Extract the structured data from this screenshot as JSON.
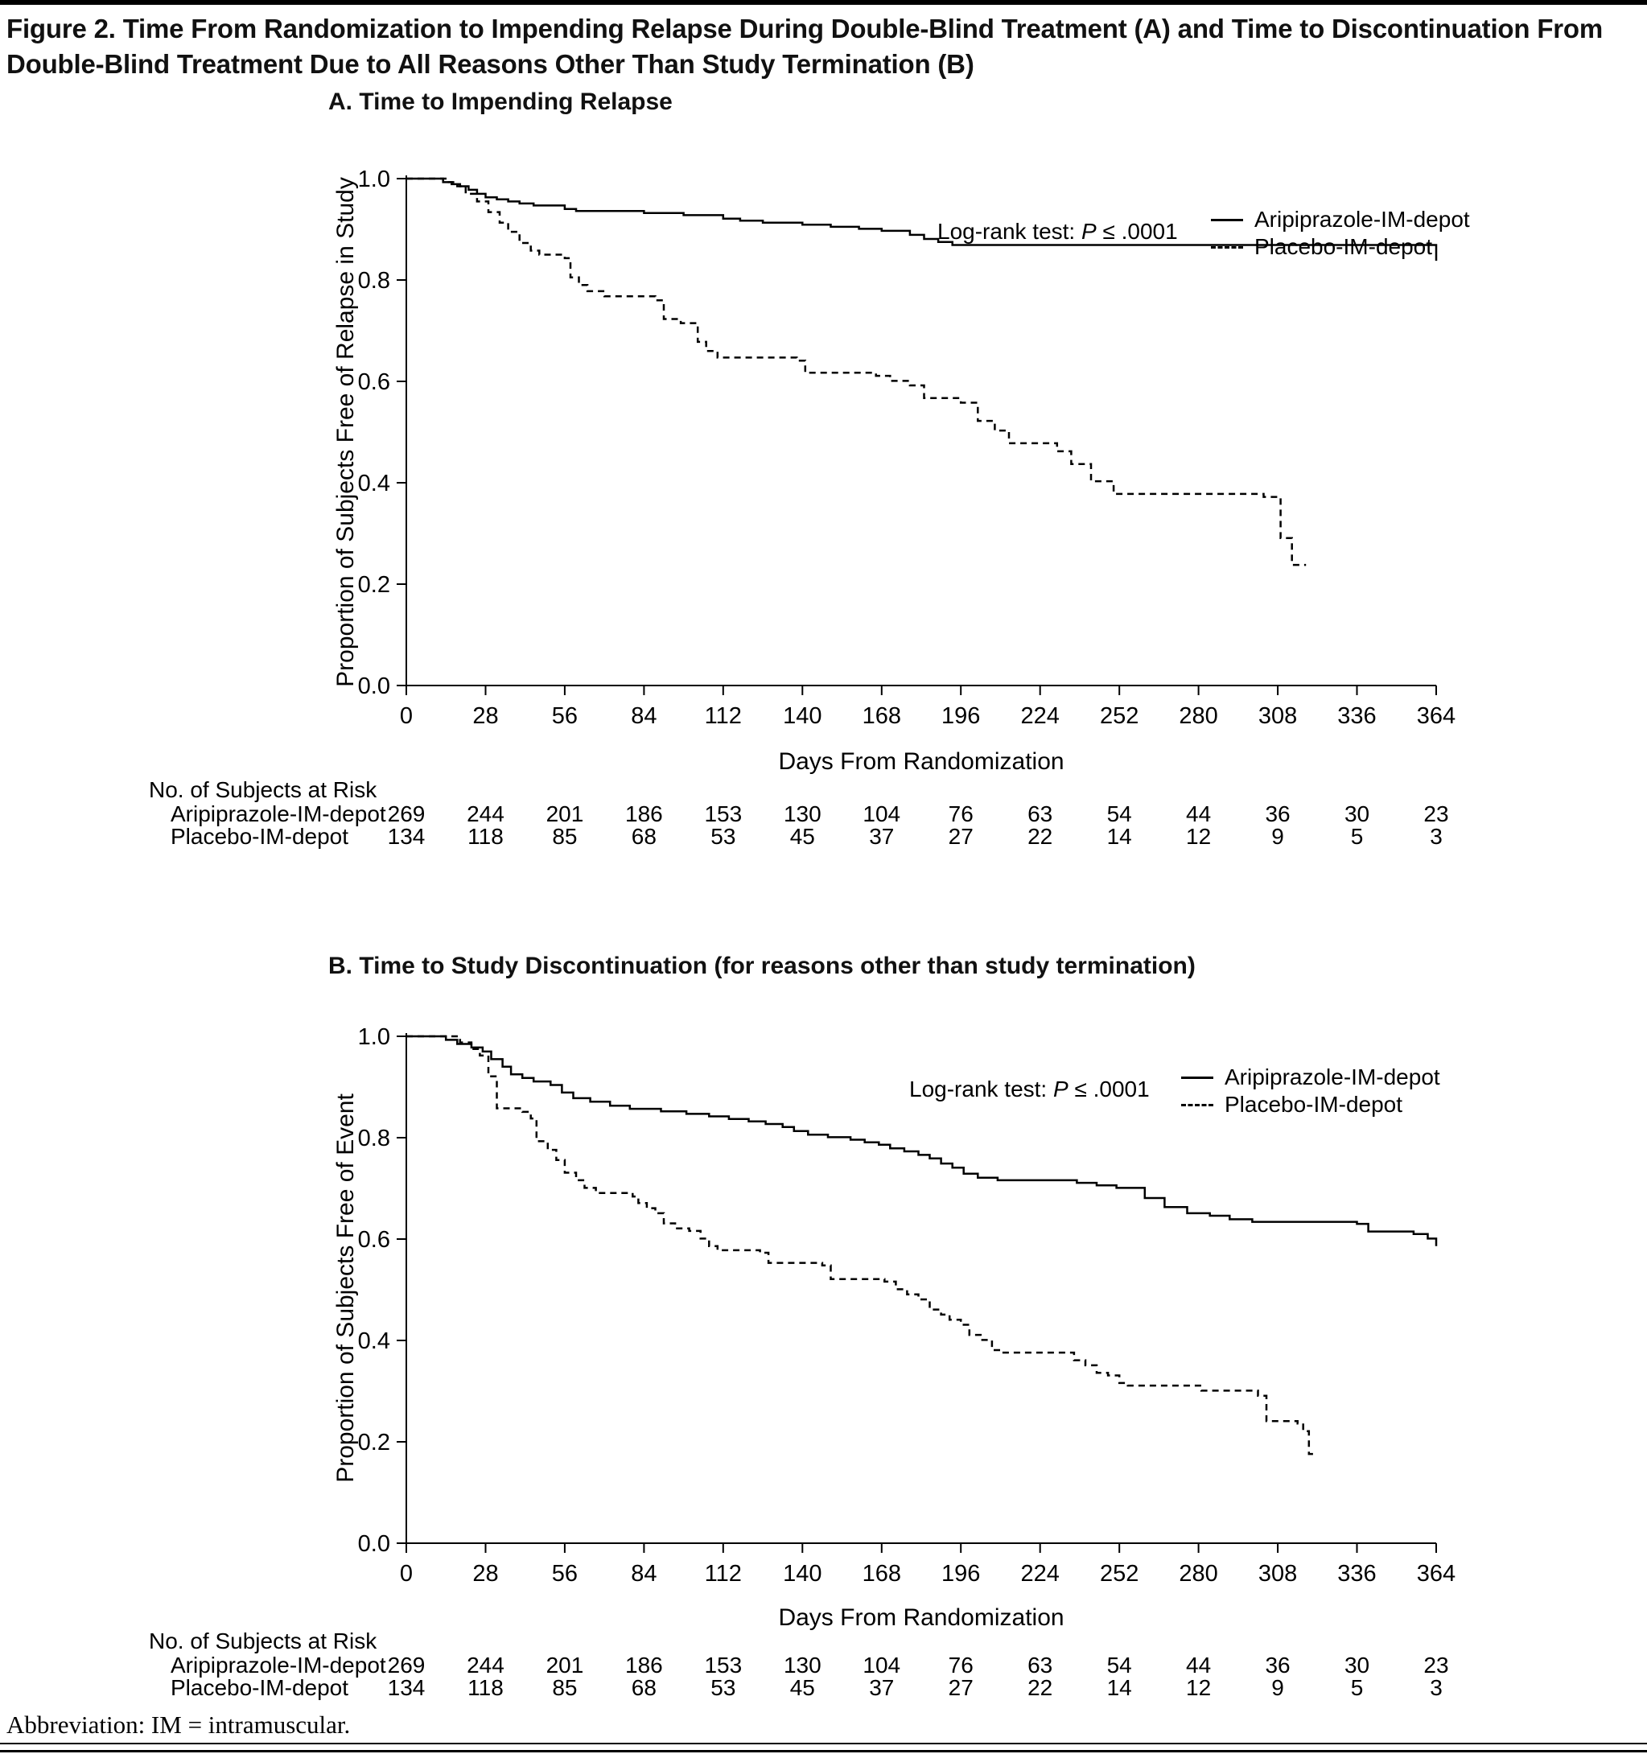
{
  "figure": {
    "title": "Figure 2. Time From Randomization to Impending Relapse During Double-Blind Treatment (A) and Time to Discontinuation From Double-Blind Treatment Due to All Reasons Other Than Study Termination (B)",
    "footnote": "Abbreviation: IM = intramuscular."
  },
  "risk_table": {
    "header": "No. of Subjects at Risk",
    "rows": [
      {
        "label": "Aripiprazole-IM-depot",
        "values": [
          269,
          244,
          201,
          186,
          153,
          130,
          104,
          76,
          63,
          54,
          44,
          36,
          30,
          23
        ]
      },
      {
        "label": "Placebo-IM-depot",
        "values": [
          134,
          118,
          85,
          68,
          53,
          45,
          37,
          27,
          22,
          14,
          12,
          9,
          5,
          3
        ]
      }
    ]
  },
  "colors": {
    "line": "#000000",
    "text": "#111111"
  },
  "chart_data": [
    {
      "type": "line",
      "curve": "kaplan-meier-step",
      "title": "A. Time to Impending Relapse",
      "xlabel": "Days From Randomization",
      "ylabel": "Proportion of Subjects Free of Relapse in Study",
      "xlim": [
        0,
        364
      ],
      "ylim": [
        0.0,
        1.0
      ],
      "xticks": [
        0,
        28,
        56,
        84,
        112,
        140,
        168,
        196,
        224,
        252,
        280,
        308,
        336,
        364
      ],
      "yticks": [
        0.0,
        0.2,
        0.4,
        0.6,
        0.8,
        1.0
      ],
      "grid": false,
      "legend_position": "upper-right-inside",
      "annotation": {
        "prefix": "Log-rank test: ",
        "stat": "P",
        "suffix": " ≤ .0001"
      },
      "legend": [
        {
          "name": "Aripiprazole-IM-depot",
          "style": "solid"
        },
        {
          "name": "Placebo-IM-depot",
          "style": "dashed"
        }
      ],
      "series": [
        {
          "name": "Aripiprazole-IM-depot",
          "style": "solid",
          "points": [
            [
              0,
              1.0
            ],
            [
              11,
              1.0
            ],
            [
              13,
              0.993
            ],
            [
              16,
              0.989
            ],
            [
              19,
              0.985
            ],
            [
              22,
              0.978
            ],
            [
              25,
              0.97
            ],
            [
              28,
              0.963
            ],
            [
              32,
              0.959
            ],
            [
              36,
              0.955
            ],
            [
              40,
              0.951
            ],
            [
              45,
              0.947
            ],
            [
              56,
              0.94
            ],
            [
              60,
              0.936
            ],
            [
              84,
              0.932
            ],
            [
              98,
              0.928
            ],
            [
              112,
              0.921
            ],
            [
              118,
              0.917
            ],
            [
              126,
              0.913
            ],
            [
              140,
              0.909
            ],
            [
              150,
              0.905
            ],
            [
              160,
              0.901
            ],
            [
              168,
              0.897
            ],
            [
              178,
              0.889
            ],
            [
              183,
              0.881
            ],
            [
              188,
              0.875
            ],
            [
              193,
              0.869
            ],
            [
              364,
              0.869
            ],
            [
              364,
              0.838
            ]
          ]
        },
        {
          "name": "Placebo-IM-depot",
          "style": "dashed",
          "points": [
            [
              0,
              1.0
            ],
            [
              12,
              1.0
            ],
            [
              15,
              0.993
            ],
            [
              18,
              0.985
            ],
            [
              21,
              0.97
            ],
            [
              25,
              0.955
            ],
            [
              29,
              0.934
            ],
            [
              33,
              0.913
            ],
            [
              36,
              0.895
            ],
            [
              40,
              0.873
            ],
            [
              44,
              0.858
            ],
            [
              47,
              0.85
            ],
            [
              56,
              0.843
            ],
            [
              58,
              0.805
            ],
            [
              61,
              0.79
            ],
            [
              64,
              0.778
            ],
            [
              70,
              0.768
            ],
            [
              88,
              0.76
            ],
            [
              91,
              0.723
            ],
            [
              97,
              0.715
            ],
            [
              103,
              0.678
            ],
            [
              106,
              0.66
            ],
            [
              110,
              0.647
            ],
            [
              138,
              0.641
            ],
            [
              141,
              0.617
            ],
            [
              166,
              0.611
            ],
            [
              171,
              0.601
            ],
            [
              178,
              0.592
            ],
            [
              183,
              0.567
            ],
            [
              196,
              0.558
            ],
            [
              202,
              0.522
            ],
            [
              208,
              0.503
            ],
            [
              213,
              0.478
            ],
            [
              230,
              0.462
            ],
            [
              235,
              0.437
            ],
            [
              242,
              0.403
            ],
            [
              250,
              0.378
            ],
            [
              303,
              0.372
            ],
            [
              309,
              0.291
            ],
            [
              313,
              0.238
            ],
            [
              318,
              0.238
            ]
          ]
        }
      ]
    },
    {
      "type": "line",
      "curve": "kaplan-meier-step",
      "title": "B. Time to Study Discontinuation (for reasons other than study termination)",
      "xlabel": "Days From Randomization",
      "ylabel": "Proportion of Subjects Free of Event",
      "xlim": [
        0,
        364
      ],
      "ylim": [
        0.0,
        1.0
      ],
      "xticks": [
        0,
        28,
        56,
        84,
        112,
        140,
        168,
        196,
        224,
        252,
        280,
        308,
        336,
        364
      ],
      "yticks": [
        0.0,
        0.2,
        0.4,
        0.6,
        0.8,
        1.0
      ],
      "grid": false,
      "legend_position": "upper-right-inside",
      "annotation": {
        "prefix": "Log-rank test: ",
        "stat": "P",
        "suffix": " ≤ .0001"
      },
      "legend": [
        {
          "name": "Aripiprazole-IM-depot",
          "style": "solid"
        },
        {
          "name": "Placebo-IM-depot",
          "style": "dashed"
        }
      ],
      "series": [
        {
          "name": "Aripiprazole-IM-depot",
          "style": "solid",
          "points": [
            [
              0,
              1.0
            ],
            [
              11,
              1.0
            ],
            [
              14,
              0.993
            ],
            [
              18,
              0.985
            ],
            [
              23,
              0.978
            ],
            [
              27,
              0.97
            ],
            [
              30,
              0.955
            ],
            [
              34,
              0.94
            ],
            [
              37,
              0.925
            ],
            [
              41,
              0.918
            ],
            [
              45,
              0.911
            ],
            [
              51,
              0.904
            ],
            [
              55,
              0.889
            ],
            [
              59,
              0.878
            ],
            [
              65,
              0.871
            ],
            [
              72,
              0.863
            ],
            [
              79,
              0.857
            ],
            [
              90,
              0.852
            ],
            [
              99,
              0.847
            ],
            [
              107,
              0.842
            ],
            [
              114,
              0.837
            ],
            [
              121,
              0.832
            ],
            [
              127,
              0.827
            ],
            [
              133,
              0.821
            ],
            [
              137,
              0.813
            ],
            [
              142,
              0.806
            ],
            [
              149,
              0.801
            ],
            [
              157,
              0.796
            ],
            [
              162,
              0.791
            ],
            [
              167,
              0.786
            ],
            [
              171,
              0.779
            ],
            [
              176,
              0.773
            ],
            [
              181,
              0.766
            ],
            [
              185,
              0.759
            ],
            [
              189,
              0.749
            ],
            [
              193,
              0.741
            ],
            [
              197,
              0.729
            ],
            [
              202,
              0.721
            ],
            [
              209,
              0.716
            ],
            [
              237,
              0.711
            ],
            [
              244,
              0.706
            ],
            [
              251,
              0.701
            ],
            [
              261,
              0.681
            ],
            [
              268,
              0.663
            ],
            [
              276,
              0.651
            ],
            [
              284,
              0.646
            ],
            [
              291,
              0.639
            ],
            [
              299,
              0.634
            ],
            [
              336,
              0.63
            ],
            [
              340,
              0.615
            ],
            [
              356,
              0.61
            ],
            [
              361,
              0.601
            ],
            [
              364,
              0.586
            ]
          ]
        },
        {
          "name": "Placebo-IM-depot",
          "style": "dashed",
          "points": [
            [
              0,
              1.0
            ],
            [
              16,
              1.0
            ],
            [
              19,
              0.988
            ],
            [
              23,
              0.975
            ],
            [
              26,
              0.962
            ],
            [
              29,
              0.921
            ],
            [
              32,
              0.858
            ],
            [
              41,
              0.851
            ],
            [
              44,
              0.838
            ],
            [
              46,
              0.793
            ],
            [
              50,
              0.776
            ],
            [
              53,
              0.756
            ],
            [
              56,
              0.731
            ],
            [
              60,
              0.716
            ],
            [
              63,
              0.701
            ],
            [
              67,
              0.691
            ],
            [
              80,
              0.684
            ],
            [
              82,
              0.671
            ],
            [
              85,
              0.661
            ],
            [
              88,
              0.651
            ],
            [
              91,
              0.631
            ],
            [
              95,
              0.621
            ],
            [
              100,
              0.616
            ],
            [
              104,
              0.601
            ],
            [
              107,
              0.586
            ],
            [
              110,
              0.578
            ],
            [
              125,
              0.573
            ],
            [
              128,
              0.553
            ],
            [
              147,
              0.548
            ],
            [
              150,
              0.521
            ],
            [
              169,
              0.516
            ],
            [
              173,
              0.501
            ],
            [
              177,
              0.491
            ],
            [
              181,
              0.481
            ],
            [
              185,
              0.461
            ],
            [
              189,
              0.451
            ],
            [
              192,
              0.441
            ],
            [
              196,
              0.431
            ],
            [
              199,
              0.411
            ],
            [
              203,
              0.401
            ],
            [
              207,
              0.381
            ],
            [
              210,
              0.376
            ],
            [
              236,
              0.361
            ],
            [
              240,
              0.351
            ],
            [
              244,
              0.336
            ],
            [
              248,
              0.331
            ],
            [
              252,
              0.316
            ],
            [
              255,
              0.311
            ],
            [
              281,
              0.301
            ],
            [
              301,
              0.291
            ],
            [
              304,
              0.241
            ],
            [
              315,
              0.236
            ],
            [
              317,
              0.221
            ],
            [
              319,
              0.176
            ],
            [
              321,
              0.176
            ]
          ]
        }
      ]
    }
  ]
}
